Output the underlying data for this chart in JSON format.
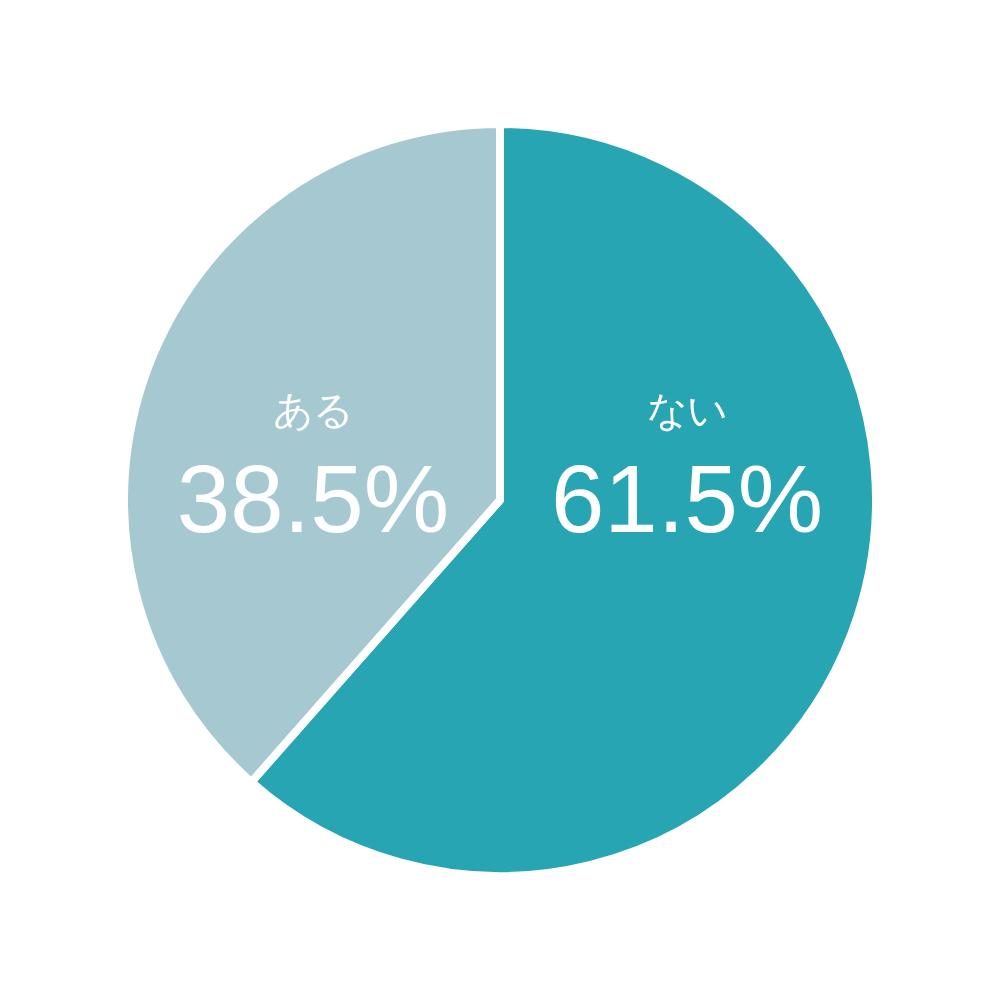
{
  "chart_data": {
    "type": "pie",
    "categories": [
      "ない",
      "ある"
    ],
    "values": [
      61.5,
      38.5
    ],
    "value_labels": [
      "61.5%",
      "38.5%"
    ],
    "colors": [
      "#28a5b3",
      "#a6c9d1"
    ]
  }
}
